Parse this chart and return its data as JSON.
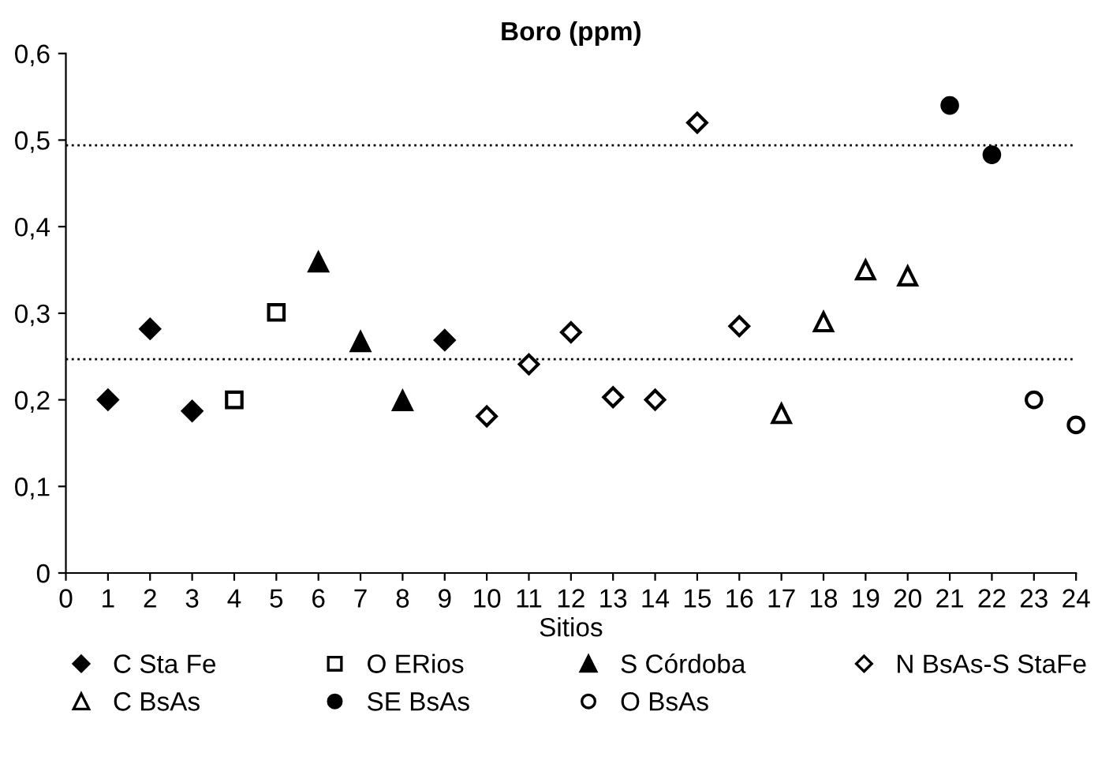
{
  "chart_data": {
    "type": "scatter",
    "title": "Boro (ppm)",
    "xlabel": "Sitios",
    "xlim": [
      0,
      24
    ],
    "xticks": [
      0,
      1,
      2,
      3,
      4,
      5,
      6,
      7,
      8,
      9,
      10,
      11,
      12,
      13,
      14,
      15,
      16,
      17,
      18,
      19,
      20,
      21,
      22,
      23,
      24
    ],
    "ylim": [
      0,
      0.6
    ],
    "yticks": [
      0,
      {
        "value": 0.1,
        "label": "0,1"
      },
      {
        "value": 0.2,
        "label": "0,2"
      },
      {
        "value": 0.3,
        "label": "0,3"
      },
      {
        "value": 0.4,
        "label": "0,4"
      },
      {
        "value": 0.5,
        "label": "0,5"
      },
      {
        "value": 0.6,
        "label": "0,6"
      }
    ],
    "grid": false,
    "legend": "bottom",
    "ref_lines": [
      {
        "axis": "y",
        "value": 0.247,
        "color": "#000000",
        "line_style": "dotted"
      },
      {
        "axis": "y",
        "value": 0.494,
        "color": "#000000",
        "line_style": "dotted"
      }
    ],
    "series": [
      {
        "name": "C Sta Fe",
        "color": "#000000",
        "marker": "diamond",
        "x": [
          1,
          2,
          3,
          9
        ],
        "values": [
          0.2,
          0.282,
          0.187,
          0.269
        ]
      },
      {
        "name": "O ERios",
        "color": "#ffffff",
        "marker": "square",
        "x": [
          4,
          5
        ],
        "values": [
          0.2,
          0.301
        ]
      },
      {
        "name": "S Córdoba",
        "color": "#000000",
        "marker": "triangle",
        "x": [
          6,
          7,
          8
        ],
        "values": [
          0.359,
          0.267,
          0.199
        ]
      },
      {
        "name": "N BsAs-S StaFe",
        "color": "#ffffff",
        "marker": "diamond",
        "x": [
          10,
          11,
          12,
          13,
          14,
          15,
          16
        ],
        "values": [
          0.181,
          0.241,
          0.278,
          0.203,
          0.2,
          0.52,
          0.285
        ]
      },
      {
        "name": "C BsAs",
        "color": "#ffffff",
        "marker": "triangle",
        "x": [
          17,
          18,
          19,
          20
        ],
        "values": [
          0.184,
          0.29,
          0.35,
          0.343
        ]
      },
      {
        "name": "SE BsAs",
        "color": "#000000",
        "marker": "circle",
        "x": [
          21,
          22
        ],
        "values": [
          0.54,
          0.483
        ]
      },
      {
        "name": "O BsAs",
        "color": "#ffffff",
        "marker": "circle",
        "x": [
          23,
          24
        ],
        "values": [
          0.2,
          0.171
        ]
      }
    ]
  }
}
